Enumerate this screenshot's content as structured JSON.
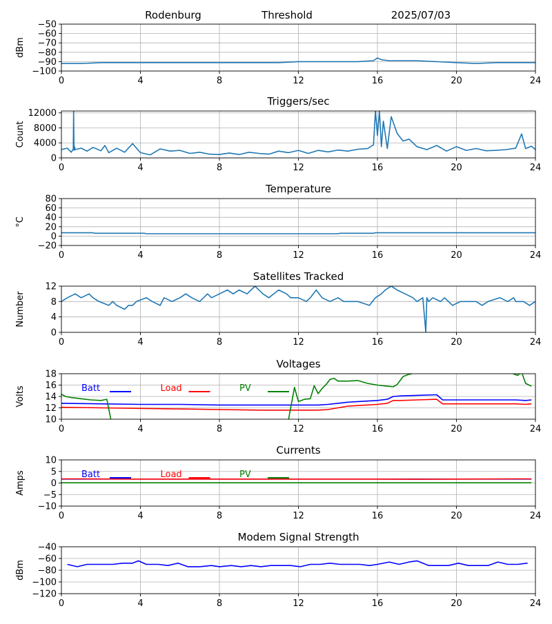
{
  "header": {
    "station": "Rodenburg",
    "mode": "Threshold",
    "date": "2025/07/03"
  },
  "chart_data": [
    {
      "id": "signal",
      "type": "line",
      "title": "",
      "ylabel": "dBm",
      "xlim": [
        0,
        24
      ],
      "ylim": [
        -100,
        -50
      ],
      "yticks": [
        -100,
        -90,
        -80,
        -70,
        -60,
        -50
      ],
      "xticks": [
        0,
        4,
        8,
        12,
        16,
        20,
        24
      ],
      "grid": true,
      "series": [
        {
          "color": "#1f77b4",
          "x": [
            0,
            1,
            2,
            3,
            4,
            5,
            6,
            7,
            8,
            9,
            10,
            11,
            12,
            13,
            14,
            15,
            15.8,
            16.0,
            16.2,
            16.6,
            17,
            18,
            19,
            20,
            21,
            22,
            23,
            24
          ],
          "values": [
            -92,
            -92,
            -91,
            -91,
            -91,
            -91,
            -91,
            -91,
            -91,
            -91,
            -91,
            -91,
            -90,
            -90,
            -90,
            -90,
            -89,
            -86,
            -88,
            -89,
            -89,
            -89,
            -90,
            -91,
            -92,
            -91,
            -91,
            -91
          ]
        }
      ]
    },
    {
      "id": "triggers",
      "type": "line",
      "title": "Triggers/sec",
      "ylabel": "Count",
      "xlim": [
        0,
        24
      ],
      "ylim": [
        0,
        12500
      ],
      "yticks": [
        0,
        4000,
        8000,
        12000
      ],
      "xticks": [
        0,
        4,
        8,
        12,
        16,
        20,
        24
      ],
      "grid": true,
      "series": [
        {
          "color": "#1f77b4",
          "x": [
            0,
            0.3,
            0.5,
            0.6,
            0.62,
            0.64,
            0.66,
            0.7,
            1.0,
            1.3,
            1.6,
            2.0,
            2.2,
            2.4,
            2.8,
            3.2,
            3.6,
            4.0,
            4.5,
            5.0,
            5.5,
            6.0,
            6.5,
            7.0,
            7.5,
            8.0,
            8.5,
            9.0,
            9.5,
            10.0,
            10.5,
            11.0,
            11.5,
            12.0,
            12.5,
            13.0,
            13.5,
            14.0,
            14.5,
            15.0,
            15.5,
            15.8,
            15.9,
            16.0,
            16.1,
            16.2,
            16.3,
            16.5,
            16.7,
            17.0,
            17.3,
            17.6,
            18.0,
            18.5,
            19.0,
            19.5,
            20.0,
            20.5,
            21.0,
            21.5,
            22.0,
            22.5,
            23.0,
            23.3,
            23.5,
            23.8,
            24
          ],
          "values": [
            2200,
            2600,
            1500,
            2400,
            12500,
            2000,
            3000,
            2200,
            2600,
            1800,
            2800,
            1900,
            3300,
            1400,
            2600,
            1500,
            3800,
            1400,
            800,
            2400,
            1800,
            2000,
            1200,
            1500,
            1000,
            900,
            1300,
            900,
            1500,
            1200,
            1000,
            1800,
            1400,
            2000,
            1200,
            2000,
            1600,
            2100,
            1800,
            2300,
            2500,
            3500,
            12500,
            6000,
            12500,
            3000,
            9800,
            2500,
            11000,
            6500,
            4500,
            5000,
            3000,
            2200,
            3300,
            1800,
            3000,
            2000,
            2500,
            1900,
            2000,
            2200,
            2600,
            6400,
            2500,
            3100,
            2200
          ]
        }
      ]
    },
    {
      "id": "temperature",
      "type": "line",
      "title": "Temperature",
      "ylabel": "°C",
      "xlim": [
        0,
        24
      ],
      "ylim": [
        -20,
        80
      ],
      "yticks": [
        -20,
        0,
        20,
        40,
        60,
        80
      ],
      "xticks": [
        0,
        4,
        8,
        12,
        16,
        20,
        24
      ],
      "grid": true,
      "series": [
        {
          "color": "#1f77b4",
          "x": [
            0,
            1.6,
            1.7,
            4.2,
            4.3,
            14.0,
            14.1,
            15.8,
            15.9,
            24
          ],
          "values": [
            7,
            7,
            6,
            6,
            5,
            5,
            6,
            6,
            7,
            7
          ]
        }
      ]
    },
    {
      "id": "satellites",
      "type": "line",
      "title": "Satellites Tracked",
      "ylabel": "Number",
      "xlim": [
        0,
        24
      ],
      "ylim": [
        0,
        12
      ],
      "yticks": [
        0,
        4,
        8,
        12
      ],
      "xticks": [
        0,
        4,
        8,
        12,
        16,
        20,
        24
      ],
      "grid": true,
      "series": [
        {
          "color": "#1f77b4",
          "x": [
            0,
            0.3,
            0.7,
            1.0,
            1.4,
            1.6,
            1.9,
            2.4,
            2.6,
            2.8,
            3.2,
            3.4,
            3.6,
            3.8,
            4.3,
            4.6,
            5.0,
            5.2,
            5.6,
            6.0,
            6.3,
            6.6,
            7.0,
            7.4,
            7.6,
            8.0,
            8.4,
            8.7,
            9.0,
            9.4,
            9.8,
            10.0,
            10.2,
            10.5,
            11.0,
            11.4,
            11.6,
            12.0,
            12.4,
            12.6,
            12.9,
            13.2,
            13.6,
            14.0,
            14.3,
            15.0,
            15.6,
            15.9,
            16.2,
            16.4,
            16.7,
            17.0,
            17.4,
            17.8,
            18.0,
            18.3,
            18.45,
            18.5,
            18.6,
            18.8,
            19.2,
            19.4,
            19.8,
            20.2,
            21.0,
            21.3,
            21.6,
            22.2,
            22.6,
            22.9,
            23.0,
            23.4,
            23.7,
            24
          ],
          "values": [
            8,
            9,
            10,
            9,
            10,
            9,
            8,
            7,
            8,
            7,
            6,
            7,
            7,
            8,
            9,
            8,
            7,
            9,
            8,
            9,
            10,
            9,
            8,
            10,
            9,
            10,
            11,
            10,
            11,
            10,
            12,
            11,
            10,
            9,
            11,
            10,
            9,
            9,
            8,
            9,
            11,
            9,
            8,
            9,
            8,
            8,
            7,
            9,
            10,
            11,
            12,
            11,
            10,
            9,
            8,
            9,
            0,
            9,
            8,
            9,
            8,
            9,
            7,
            8,
            8,
            7,
            8,
            9,
            8,
            9,
            8,
            8,
            7,
            8
          ]
        }
      ]
    },
    {
      "id": "voltages",
      "type": "line",
      "title": "Voltages",
      "ylabel": "Volts",
      "xlim": [
        0,
        24
      ],
      "ylim": [
        10,
        18
      ],
      "yticks": [
        10,
        12,
        14,
        16,
        18
      ],
      "xticks": [
        0,
        4,
        8,
        12,
        16,
        20,
        24
      ],
      "grid": true,
      "legend_placement": "top-left",
      "series": [
        {
          "name": "Batt",
          "color": "#0000ff",
          "x": [
            0,
            2,
            4,
            6,
            8,
            10,
            12,
            13,
            13.5,
            14,
            14.5,
            15,
            16,
            16.5,
            16.8,
            17.2,
            18,
            19,
            19.3,
            20,
            22,
            23,
            23.5,
            23.8
          ],
          "values": [
            12.8,
            12.7,
            12.6,
            12.6,
            12.5,
            12.5,
            12.5,
            12.5,
            12.6,
            12.8,
            13.0,
            13.1,
            13.3,
            13.5,
            14.0,
            14.1,
            14.2,
            14.3,
            13.4,
            13.4,
            13.4,
            13.4,
            13.3,
            13.4
          ]
        },
        {
          "name": "Load",
          "color": "#ff0000",
          "x": [
            0,
            2,
            4,
            6,
            8,
            10,
            12,
            13,
            13.5,
            14,
            14.5,
            15,
            16,
            16.5,
            16.8,
            17.2,
            18,
            19,
            19.3,
            20,
            22,
            23,
            23.5,
            23.8
          ],
          "values": [
            12.1,
            12.0,
            11.9,
            11.8,
            11.7,
            11.6,
            11.6,
            11.6,
            11.7,
            12.0,
            12.3,
            12.4,
            12.6,
            12.8,
            13.3,
            13.3,
            13.4,
            13.5,
            12.7,
            12.7,
            12.7,
            12.7,
            12.6,
            12.7
          ]
        },
        {
          "name": "PV",
          "color": "#008000",
          "x": [
            0,
            0.2,
            0.5,
            1.0,
            1.5,
            2.0,
            2.3,
            2.5,
            2.6,
            11.3,
            11.5,
            11.8,
            12.0,
            12.3,
            12.6,
            12.8,
            13.0,
            13.2,
            13.4,
            13.6,
            13.8,
            14.0,
            14.5,
            15.0,
            15.5,
            16.0,
            16.5,
            16.8,
            17.0,
            17.3,
            17.6,
            18.0,
            22.8,
            23.1,
            23.3,
            23.5,
            23.8
          ],
          "values": [
            14.4,
            14.0,
            13.8,
            13.6,
            13.4,
            13.3,
            13.5,
            10.0,
            9.0,
            9.0,
            10.0,
            15.6,
            13.1,
            13.5,
            13.6,
            15.9,
            14.5,
            15.4,
            16.1,
            17.0,
            17.2,
            16.7,
            16.7,
            16.8,
            16.3,
            16.0,
            15.8,
            15.7,
            16.1,
            17.5,
            17.9,
            18.2,
            18.1,
            17.7,
            18.3,
            16.3,
            15.8
          ]
        }
      ]
    },
    {
      "id": "currents",
      "type": "line",
      "title": "Currents",
      "ylabel": "Amps",
      "xlim": [
        0,
        24
      ],
      "ylim": [
        -10,
        10
      ],
      "yticks": [
        -10,
        -5,
        0,
        5,
        10
      ],
      "xticks": [
        0,
        4,
        8,
        12,
        16,
        20,
        24
      ],
      "grid": true,
      "legend_placement": "top-left",
      "series": [
        {
          "name": "Batt",
          "color": "#0000ff",
          "x": [
            0,
            23.8
          ],
          "values": [
            1.7,
            1.7
          ]
        },
        {
          "name": "Load",
          "color": "#ff0000",
          "x": [
            0,
            1,
            4,
            8,
            12,
            16,
            18,
            20,
            23,
            23.8
          ],
          "values": [
            1.8,
            1.8,
            1.7,
            1.7,
            1.7,
            1.7,
            1.6,
            1.7,
            1.8,
            1.8
          ]
        },
        {
          "name": "PV",
          "color": "#008000",
          "x": [
            0,
            23.8
          ],
          "values": [
            0.1,
            0.1
          ]
        }
      ]
    },
    {
      "id": "modem",
      "type": "line",
      "title": "Modem Signal Strength",
      "ylabel": "dBm",
      "xlim": [
        0,
        24
      ],
      "ylim": [
        -120,
        -40
      ],
      "yticks": [
        -120,
        -100,
        -80,
        -60,
        -40
      ],
      "xticks": [
        0,
        4,
        8,
        12,
        16,
        20,
        24
      ],
      "grid": true,
      "series": [
        {
          "color": "#0000ff",
          "x": [
            0.3,
            0.8,
            1.3,
            2.0,
            2.6,
            3.1,
            3.6,
            3.9,
            4.3,
            4.9,
            5.4,
            5.9,
            6.4,
            7.0,
            7.6,
            8.0,
            8.6,
            9.1,
            9.6,
            10.1,
            10.6,
            11.1,
            11.6,
            12.1,
            12.6,
            13.1,
            13.6,
            14.1,
            14.6,
            15.1,
            15.6,
            16.0,
            16.6,
            17.1,
            17.6,
            18.0,
            18.6,
            19.1,
            19.6,
            20.1,
            20.6,
            21.1,
            21.6,
            22.1,
            22.6,
            23.1,
            23.6
          ],
          "values": [
            -70,
            -74,
            -70,
            -70,
            -70,
            -68,
            -68,
            -64,
            -70,
            -70,
            -72,
            -68,
            -74,
            -74,
            -72,
            -74,
            -72,
            -74,
            -72,
            -74,
            -72,
            -72,
            -72,
            -74,
            -70,
            -70,
            -68,
            -70,
            -70,
            -70,
            -72,
            -70,
            -66,
            -70,
            -66,
            -64,
            -72,
            -72,
            -72,
            -68,
            -72,
            -72,
            -72,
            -66,
            -70,
            -70,
            -68
          ]
        }
      ]
    }
  ]
}
